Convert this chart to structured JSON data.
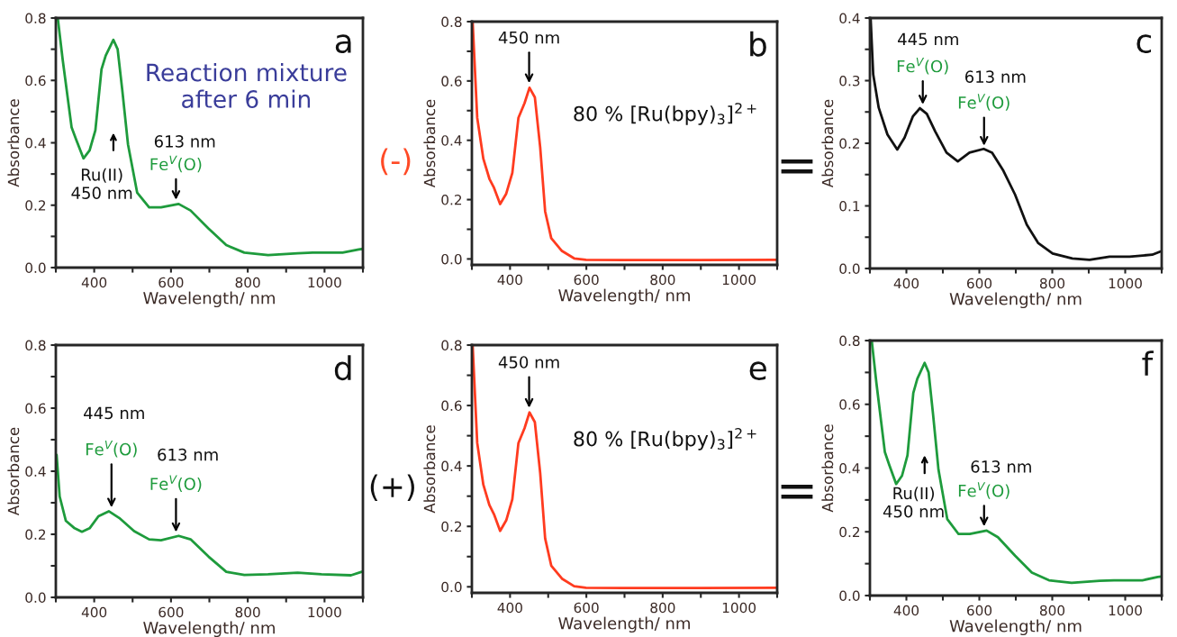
{
  "chart_data": [
    {
      "type": "line",
      "title": "a",
      "xlabel": "Wavelength/ nm",
      "ylabel": "Absorbance",
      "x": [
        305,
        318,
        341,
        353,
        372,
        388,
        403,
        419,
        430,
        450,
        461,
        473,
        488,
        512,
        543,
        574,
        620,
        651,
        698,
        744,
        791,
        853,
        930,
        969,
        1047,
        1089,
        1100
      ],
      "series": [
        {
          "color": "#1e9b3c",
          "values": [
            0.8,
            0.665,
            0.45,
            0.41,
            0.35,
            0.376,
            0.44,
            0.636,
            0.68,
            0.73,
            0.7,
            0.57,
            0.395,
            0.24,
            0.193,
            0.193,
            0.204,
            0.183,
            0.125,
            0.072,
            0.048,
            0.04,
            0.046,
            0.048,
            0.048,
            0.058,
            0.06
          ]
        }
      ],
      "xlim": [
        300,
        1100
      ],
      "ylim": [
        0,
        0.8
      ],
      "xticks": [
        {
          "value": 300,
          "label": null
        },
        400,
        {
          "value": 500,
          "label": null
        },
        600,
        {
          "value": 700,
          "label": null
        },
        800,
        {
          "value": 900,
          "label": null
        },
        1000,
        {
          "value": 1100,
          "label": null
        }
      ],
      "yticks": [
        {
          "value": 0,
          "label": "0.0"
        },
        {
          "value": 0.1,
          "label": null
        },
        0.2,
        {
          "value": 0.3,
          "label": null
        },
        0.4,
        {
          "value": 0.5,
          "label": null
        },
        0.6,
        {
          "value": 0.7,
          "label": null
        },
        0.8
      ],
      "annotations": [
        "Reaction mixture\nafter 6 min",
        "Ru(II)\n450 nm",
        "613 nm",
        {
          "text": "Fe$^{V}$(O)",
          "x": 613,
          "y": 0.205
        }
      ]
    },
    {
      "type": "line",
      "title": "b",
      "xlabel": "Wavelength/ nm",
      "ylabel": "Absorbance",
      "x": [
        302,
        314,
        330,
        346,
        358,
        374,
        390,
        406,
        422,
        438,
        451,
        465,
        479,
        492,
        508,
        536,
        568,
        599,
        700,
        900,
        1100
      ],
      "series": [
        {
          "color": "#ff3b1f",
          "values": [
            0.8,
            0.476,
            0.338,
            0.27,
            0.24,
            0.185,
            0.22,
            0.29,
            0.476,
            0.525,
            0.577,
            0.545,
            0.377,
            0.16,
            0.07,
            0.027,
            0.002,
            -0.003,
            -0.004,
            -0.004,
            -0.003
          ]
        }
      ],
      "xlim": [
        300,
        1100
      ],
      "ylim": [
        -0.02,
        0.8
      ],
      "xticks": [
        {
          "value": 300,
          "label": null
        },
        400,
        {
          "value": 500,
          "label": null
        },
        600,
        {
          "value": 700,
          "label": null
        },
        800,
        {
          "value": 900,
          "label": null
        },
        1000,
        {
          "value": 1100,
          "label": null
        }
      ],
      "yticks": [
        {
          "value": 0,
          "label": "0.0"
        },
        {
          "value": 0.1,
          "label": null
        },
        0.2,
        {
          "value": 0.3,
          "label": null
        },
        0.4,
        {
          "value": 0.5,
          "label": null
        },
        0.6,
        {
          "value": 0.7,
          "label": null
        },
        0.8
      ],
      "annotations": [
        "(-)",
        {
          "text": "450 nm",
          "x": 450,
          "y": 0.58
        },
        "80 % [Ru(bpy)$_{3}$]$^{2+}$"
      ]
    },
    {
      "type": "line",
      "title": "c",
      "xlabel": "Wavelength/ nm",
      "ylabel": "Absorbance",
      "x": [
        302,
        309,
        324,
        348,
        375,
        395,
        418,
        437,
        456,
        479,
        510,
        541,
        573,
        612,
        635,
        666,
        698,
        730,
        761,
        801,
        855,
        902,
        957,
        1012,
        1074,
        1096
      ],
      "series": [
        {
          "color": "#111111",
          "values": [
            0.399,
            0.31,
            0.257,
            0.214,
            0.19,
            0.209,
            0.243,
            0.256,
            0.247,
            0.219,
            0.185,
            0.171,
            0.185,
            0.191,
            0.185,
            0.156,
            0.118,
            0.07,
            0.041,
            0.024,
            0.016,
            0.014,
            0.019,
            0.019,
            0.022,
            0.027
          ]
        }
      ],
      "xlim": [
        300,
        1100
      ],
      "ylim": [
        0,
        0.4
      ],
      "xticks": [
        {
          "value": 300,
          "label": null
        },
        400,
        {
          "value": 500,
          "label": null
        },
        600,
        {
          "value": 700,
          "label": null
        },
        800,
        {
          "value": 900,
          "label": null
        },
        1000,
        {
          "value": 1100,
          "label": null
        }
      ],
      "yticks": [
        {
          "value": 0,
          "label": "0.0"
        },
        {
          "value": 0.05,
          "label": null
        },
        0.1,
        {
          "value": 0.15,
          "label": null
        },
        0.2,
        {
          "value": 0.25,
          "label": null
        },
        0.3,
        {
          "value": 0.35,
          "label": null
        },
        0.4
      ],
      "annotations": [
        "=",
        "445 nm",
        {
          "text": "Fe$^{V}$(O)",
          "x": 445,
          "y": 0.256
        },
        "613 nm",
        {
          "text": "Fe$^{V}$(O)",
          "x": 613,
          "y": 0.19
        }
      ]
    },
    {
      "type": "line",
      "title": "d",
      "xlabel": "Wavelength/ nm",
      "ylabel": "Absorbance",
      "x": [
        302,
        310,
        326,
        349,
        368,
        388,
        411,
        438,
        465,
        504,
        543,
        574,
        620,
        651,
        698,
        744,
        791,
        853,
        930,
        992,
        1069,
        1097
      ],
      "series": [
        {
          "color": "#1e9b3c",
          "values": [
            0.452,
            0.32,
            0.243,
            0.219,
            0.208,
            0.219,
            0.257,
            0.273,
            0.252,
            0.21,
            0.184,
            0.181,
            0.195,
            0.184,
            0.129,
            0.081,
            0.071,
            0.073,
            0.078,
            0.073,
            0.07,
            0.081
          ]
        }
      ],
      "xlim": [
        300,
        1100
      ],
      "ylim": [
        0,
        0.8
      ],
      "xticks": [
        {
          "value": 300,
          "label": null
        },
        400,
        {
          "value": 500,
          "label": null
        },
        600,
        {
          "value": 700,
          "label": null
        },
        800,
        {
          "value": 900,
          "label": null
        },
        1000,
        {
          "value": 1100,
          "label": null
        }
      ],
      "yticks": [
        {
          "value": 0,
          "label": "0.0"
        },
        {
          "value": 0.1,
          "label": null
        },
        0.2,
        {
          "value": 0.3,
          "label": null
        },
        0.4,
        {
          "value": 0.5,
          "label": null
        },
        0.6,
        {
          "value": 0.7,
          "label": null
        },
        0.8
      ],
      "annotations": [
        "445 nm",
        {
          "text": "Fe$^{V}$(O)",
          "x": 445,
          "y": 0.273
        },
        "613 nm",
        {
          "text": "Fe$^{V}$(O)",
          "x": 613,
          "y": 0.195
        }
      ]
    },
    {
      "type": "line",
      "title": "e",
      "xlabel": "Wavelength/ nm",
      "ylabel": "Absorbance",
      "x": [
        302,
        314,
        330,
        346,
        358,
        374,
        390,
        406,
        422,
        438,
        451,
        465,
        479,
        492,
        508,
        536,
        568,
        599,
        700,
        900,
        1100
      ],
      "series": [
        {
          "color": "#ff3b1f",
          "values": [
            0.8,
            0.476,
            0.338,
            0.27,
            0.24,
            0.185,
            0.22,
            0.29,
            0.476,
            0.525,
            0.577,
            0.545,
            0.377,
            0.16,
            0.07,
            0.027,
            0.002,
            -0.003,
            -0.004,
            -0.004,
            -0.003
          ]
        }
      ],
      "xlim": [
        300,
        1100
      ],
      "ylim": [
        -0.02,
        0.8
      ],
      "xticks": [
        {
          "value": 300,
          "label": null
        },
        400,
        {
          "value": 500,
          "label": null
        },
        600,
        {
          "value": 700,
          "label": null
        },
        800,
        {
          "value": 900,
          "label": null
        },
        1000,
        {
          "value": 1100,
          "label": null
        }
      ],
      "yticks": [
        {
          "value": 0,
          "label": "0.0"
        },
        {
          "value": 0.1,
          "label": null
        },
        0.2,
        {
          "value": 0.3,
          "label": null
        },
        0.4,
        {
          "value": 0.5,
          "label": null
        },
        0.6,
        {
          "value": 0.7,
          "label": null
        },
        0.8
      ],
      "annotations": [
        "(+)",
        {
          "text": "450 nm",
          "x": 450,
          "y": 0.58
        },
        "80 % [Ru(bpy)$_{3}$]$^{2+}$"
      ]
    },
    {
      "type": "line",
      "title": "f",
      "xlabel": "Wavelength/ nm",
      "ylabel": "Absorbance",
      "x": [
        305,
        318,
        341,
        353,
        372,
        388,
        403,
        419,
        430,
        450,
        461,
        473,
        488,
        512,
        543,
        574,
        620,
        651,
        698,
        744,
        791,
        853,
        930,
        969,
        1047,
        1089,
        1100
      ],
      "series": [
        {
          "color": "#1e9b3c",
          "values": [
            0.8,
            0.665,
            0.45,
            0.41,
            0.35,
            0.376,
            0.44,
            0.636,
            0.68,
            0.73,
            0.7,
            0.57,
            0.395,
            0.24,
            0.193,
            0.193,
            0.204,
            0.183,
            0.125,
            0.072,
            0.048,
            0.04,
            0.046,
            0.048,
            0.048,
            0.058,
            0.06
          ]
        }
      ],
      "xlim": [
        300,
        1100
      ],
      "ylim": [
        0,
        0.8
      ],
      "xticks": [
        {
          "value": 300,
          "label": null
        },
        400,
        {
          "value": 500,
          "label": null
        },
        600,
        {
          "value": 700,
          "label": null
        },
        800,
        {
          "value": 900,
          "label": null
        },
        1000,
        {
          "value": 1100,
          "label": null
        }
      ],
      "yticks": [
        {
          "value": 0,
          "label": "0.0"
        },
        {
          "value": 0.1,
          "label": null
        },
        0.2,
        {
          "value": 0.3,
          "label": null
        },
        0.4,
        {
          "value": 0.5,
          "label": null
        },
        0.6,
        {
          "value": 0.7,
          "label": null
        },
        0.8
      ],
      "annotations": [
        "=",
        "Ru(II)\n450 nm",
        "613 nm",
        {
          "text": "Fe$^{V}$(O)",
          "x": 613,
          "y": 0.205
        }
      ]
    }
  ]
}
